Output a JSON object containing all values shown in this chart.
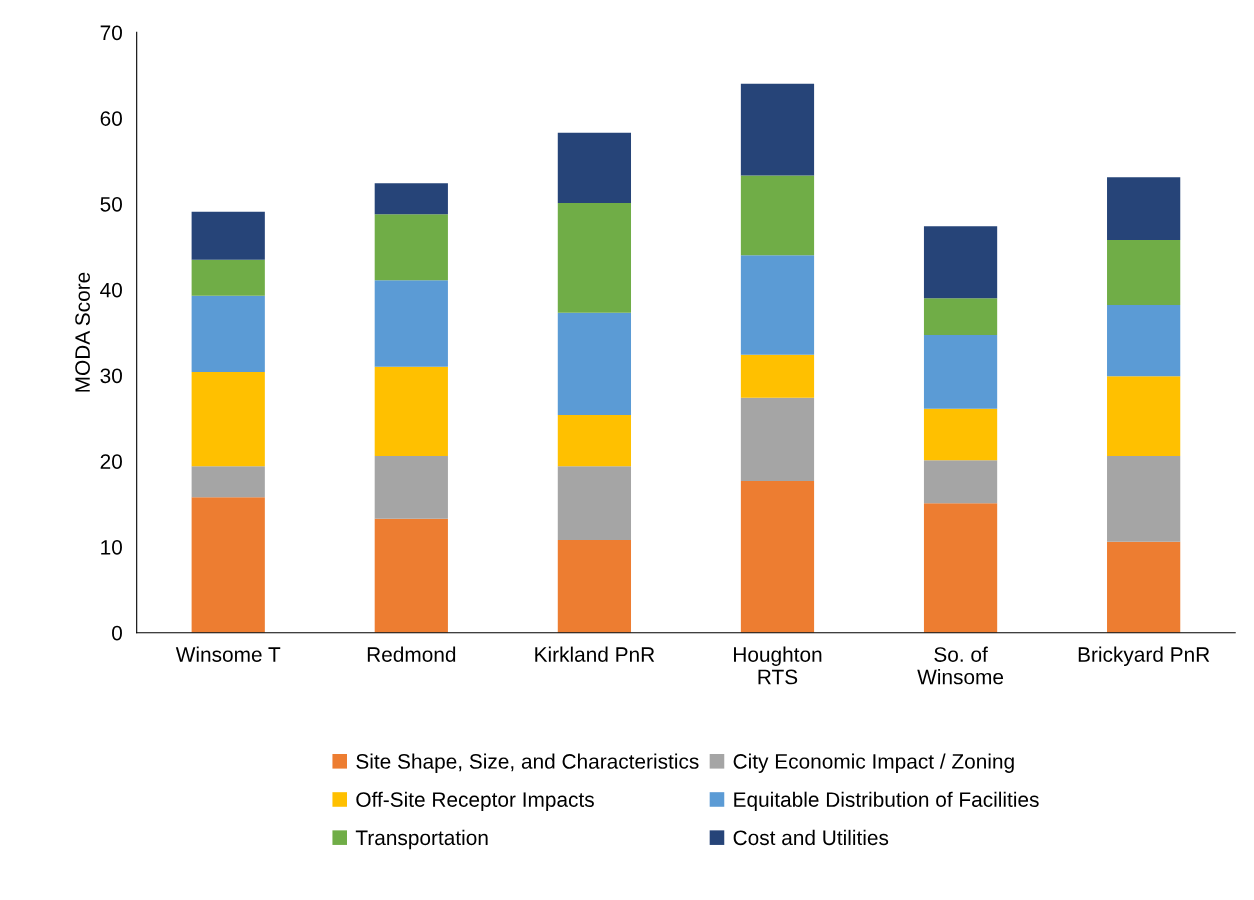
{
  "chart_data": {
    "type": "bar",
    "stacked": true,
    "ylabel": "MODA Score",
    "categories": [
      "Winsome T",
      "Redmond",
      "Kirkland PnR",
      "Houghton\nRTS",
      "So. of\nWinsome",
      "Brickyard PnR"
    ],
    "series": [
      {
        "name": "Site Shape, Size, and Characteristics",
        "color": "#ed7d31",
        "values": [
          15.8,
          13.3,
          10.8,
          17.7,
          15.1,
          10.6
        ]
      },
      {
        "name": "City Economic Impact / Zoning",
        "color": "#a5a5a5",
        "values": [
          3.6,
          7.3,
          8.6,
          9.7,
          5.0,
          10.0
        ]
      },
      {
        "name": "Off-Site Receptor Impacts",
        "color": "#ffc000",
        "values": [
          11.0,
          10.4,
          6.0,
          5.0,
          6.0,
          9.3
        ]
      },
      {
        "name": "Equitable Distribution of Facilities",
        "color": "#5b9bd5",
        "values": [
          8.9,
          10.1,
          11.9,
          11.6,
          8.6,
          8.3
        ]
      },
      {
        "name": "Transportation",
        "color": "#70ad47",
        "values": [
          4.2,
          7.7,
          12.8,
          9.3,
          4.3,
          7.6
        ]
      },
      {
        "name": "Cost and Utilities",
        "color": "#264478",
        "values": [
          5.6,
          3.6,
          8.2,
          10.7,
          8.4,
          7.3
        ]
      }
    ],
    "ylim": [
      0,
      70
    ],
    "yticks": [
      0,
      10,
      20,
      30,
      40,
      50,
      60,
      70
    ],
    "grid": false,
    "legend": "bottom"
  }
}
